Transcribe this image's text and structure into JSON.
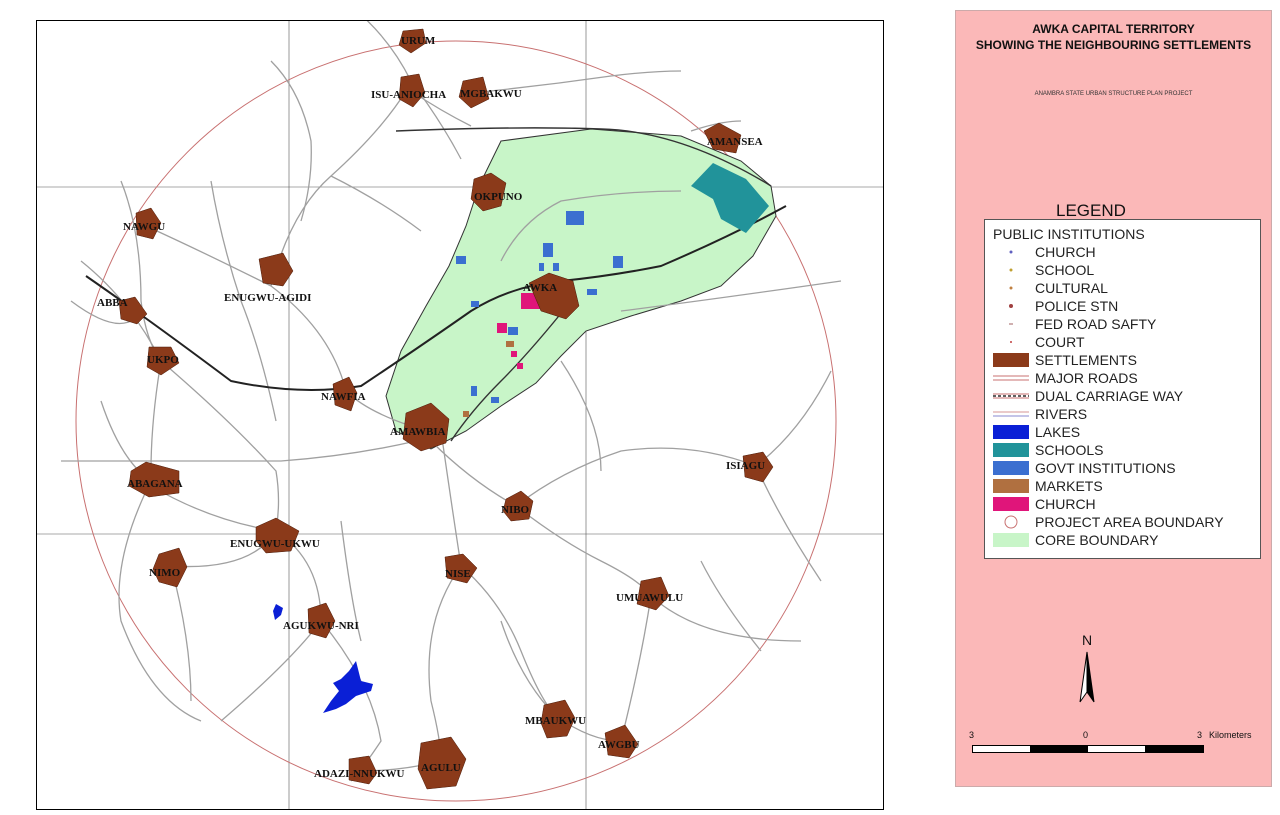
{
  "map": {
    "settlements": [
      {
        "id": "urum",
        "label": "URUM"
      },
      {
        "id": "isu-aniocha",
        "label": "ISU-ANIOCHA"
      },
      {
        "id": "mgbakwu",
        "label": "MGBAKWU"
      },
      {
        "id": "amansea",
        "label": "AMANSEA"
      },
      {
        "id": "okpuno",
        "label": "OKPUNO"
      },
      {
        "id": "nawgu",
        "label": "NAWGU"
      },
      {
        "id": "enugwu-agidi",
        "label": "ENUGWU-AGIDI"
      },
      {
        "id": "abba",
        "label": "ABBA"
      },
      {
        "id": "awka",
        "label": "AWKA"
      },
      {
        "id": "ukpo",
        "label": "UKPO"
      },
      {
        "id": "nawfia",
        "label": "NAWFIA"
      },
      {
        "id": "amawbia",
        "label": "AMAWBIA"
      },
      {
        "id": "abagana",
        "label": "ABAGANA"
      },
      {
        "id": "isiagu",
        "label": "ISIAGU"
      },
      {
        "id": "nibo",
        "label": "NIBO"
      },
      {
        "id": "enugwu-ukwu",
        "label": "ENUGWU-UKWU"
      },
      {
        "id": "nimo",
        "label": "NIMO"
      },
      {
        "id": "nise",
        "label": "NISE"
      },
      {
        "id": "umuawulu",
        "label": "UMUAWULU"
      },
      {
        "id": "agukwu-nri",
        "label": "AGUKWU-NRI"
      },
      {
        "id": "mbaukwu",
        "label": "MBAUKWU"
      },
      {
        "id": "awgbu",
        "label": "AWGBU"
      },
      {
        "id": "adazi-nnukwu",
        "label": "ADAZI-NNUKWU"
      },
      {
        "id": "agulu",
        "label": "AGULU"
      }
    ],
    "colors": {
      "settlement": "#8b3a1a",
      "core": "#c8f5c8",
      "lake": "#0a1fd6",
      "school": "#21939a",
      "govt": "#3b6fd0",
      "church": "#e0157a",
      "market": "#b07040",
      "boundary": "#c87070",
      "road": "#9a9a9a"
    }
  },
  "legend": {
    "title_line1": "AWKA CAPITAL TERRITORY",
    "title_line2": "SHOWING THE NEIGHBOURING SETTLEMENTS",
    "subtitle": "ANAMBRA STATE URBAN STRUCTURE PLAN PROJECT",
    "heading": "LEGEND",
    "public_institutions": "PUBLIC INSTITUTIONS",
    "items": [
      {
        "label": "CHURCH",
        "icon": "church-dot-icon"
      },
      {
        "label": "SCHOOL",
        "icon": "school-dot-icon"
      },
      {
        "label": "CULTURAL",
        "icon": "cultural-dot-icon"
      },
      {
        "label": "POLICE STN",
        "icon": "police-dot-icon"
      },
      {
        "label": "FED ROAD SAFTY",
        "icon": "road-safety-dot-icon"
      },
      {
        "label": "COURT",
        "icon": "court-dot-icon"
      },
      {
        "label": "SETTLEMENTS",
        "icon": "settlement-swatch"
      },
      {
        "label": "MAJOR ROADS",
        "icon": "major-road-line"
      },
      {
        "label": "DUAL CARRIAGE WAY",
        "icon": "dual-carriage-line"
      },
      {
        "label": "RIVERS",
        "icon": "river-line"
      },
      {
        "label": "LAKES",
        "icon": "lake-swatch"
      },
      {
        "label": "SCHOOLS",
        "icon": "schools-swatch"
      },
      {
        "label": "GOVT INSTITUTIONS",
        "icon": "govt-swatch"
      },
      {
        "label": "MARKETS",
        "icon": "markets-swatch"
      },
      {
        "label": "CHURCH",
        "icon": "church-swatch"
      },
      {
        "label": "PROJECT AREA BOUNDARY",
        "icon": "project-boundary-symbol"
      },
      {
        "label": "CORE BOUNDARY",
        "icon": "core-boundary-swatch"
      }
    ],
    "north": "N",
    "scale": {
      "left": "3",
      "mid": "0",
      "right": "3",
      "unit": "Kilometers"
    }
  }
}
